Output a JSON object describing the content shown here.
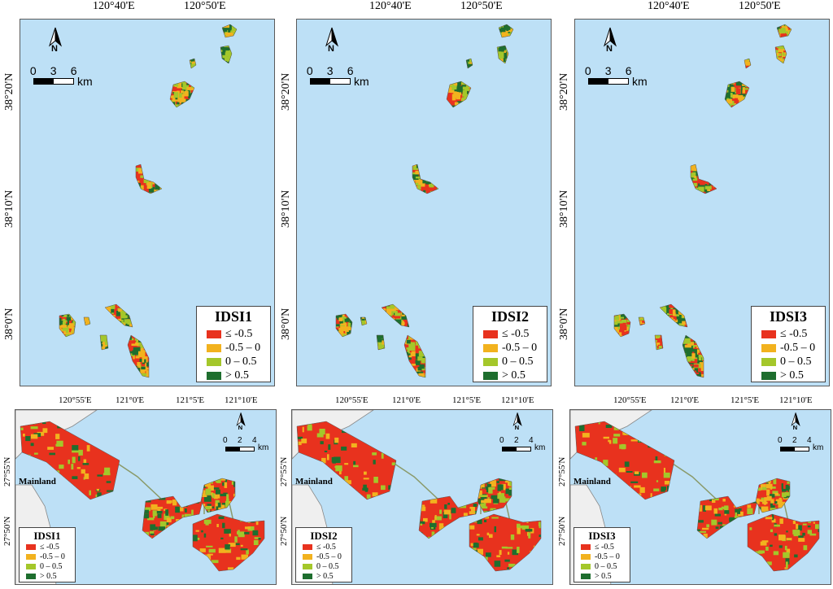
{
  "colors": {
    "water": "#bde0f6",
    "mainland": "#efefef",
    "class_1": "#e8321e",
    "class_2": "#f2b21e",
    "class_3": "#a4c72a",
    "class_4": "#1e6e2e",
    "causeway": "#8a9a6a"
  },
  "legend_classes": [
    "≤ -0.5",
    "-0.5 – 0",
    "0 – 0.5",
    "> 0.5"
  ],
  "north_label": "N",
  "top": {
    "x_ticks": [
      "120°40'E",
      "120°50'E"
    ],
    "y_ticks": [
      "38°20'N",
      "38°10'N",
      "38°0'N"
    ],
    "scale": {
      "labels": [
        "0",
        "3",
        "6"
      ],
      "unit": "km"
    },
    "panels": [
      {
        "index": "IDSI1"
      },
      {
        "index": "IDSI2"
      },
      {
        "index": "IDSI3"
      }
    ]
  },
  "bottom": {
    "x_ticks": [
      "120°55'E",
      "121°0'E",
      "121°5'E",
      "121°10'E"
    ],
    "y_ticks": [
      "27°55'N",
      "27°50'N"
    ],
    "scale": {
      "labels": [
        "0",
        "2",
        "4"
      ],
      "unit": "km"
    },
    "mainland_label": "Mainland",
    "panels": [
      {
        "index": "IDSI1"
      },
      {
        "index": "IDSI2"
      },
      {
        "index": "IDSI3"
      }
    ]
  }
}
